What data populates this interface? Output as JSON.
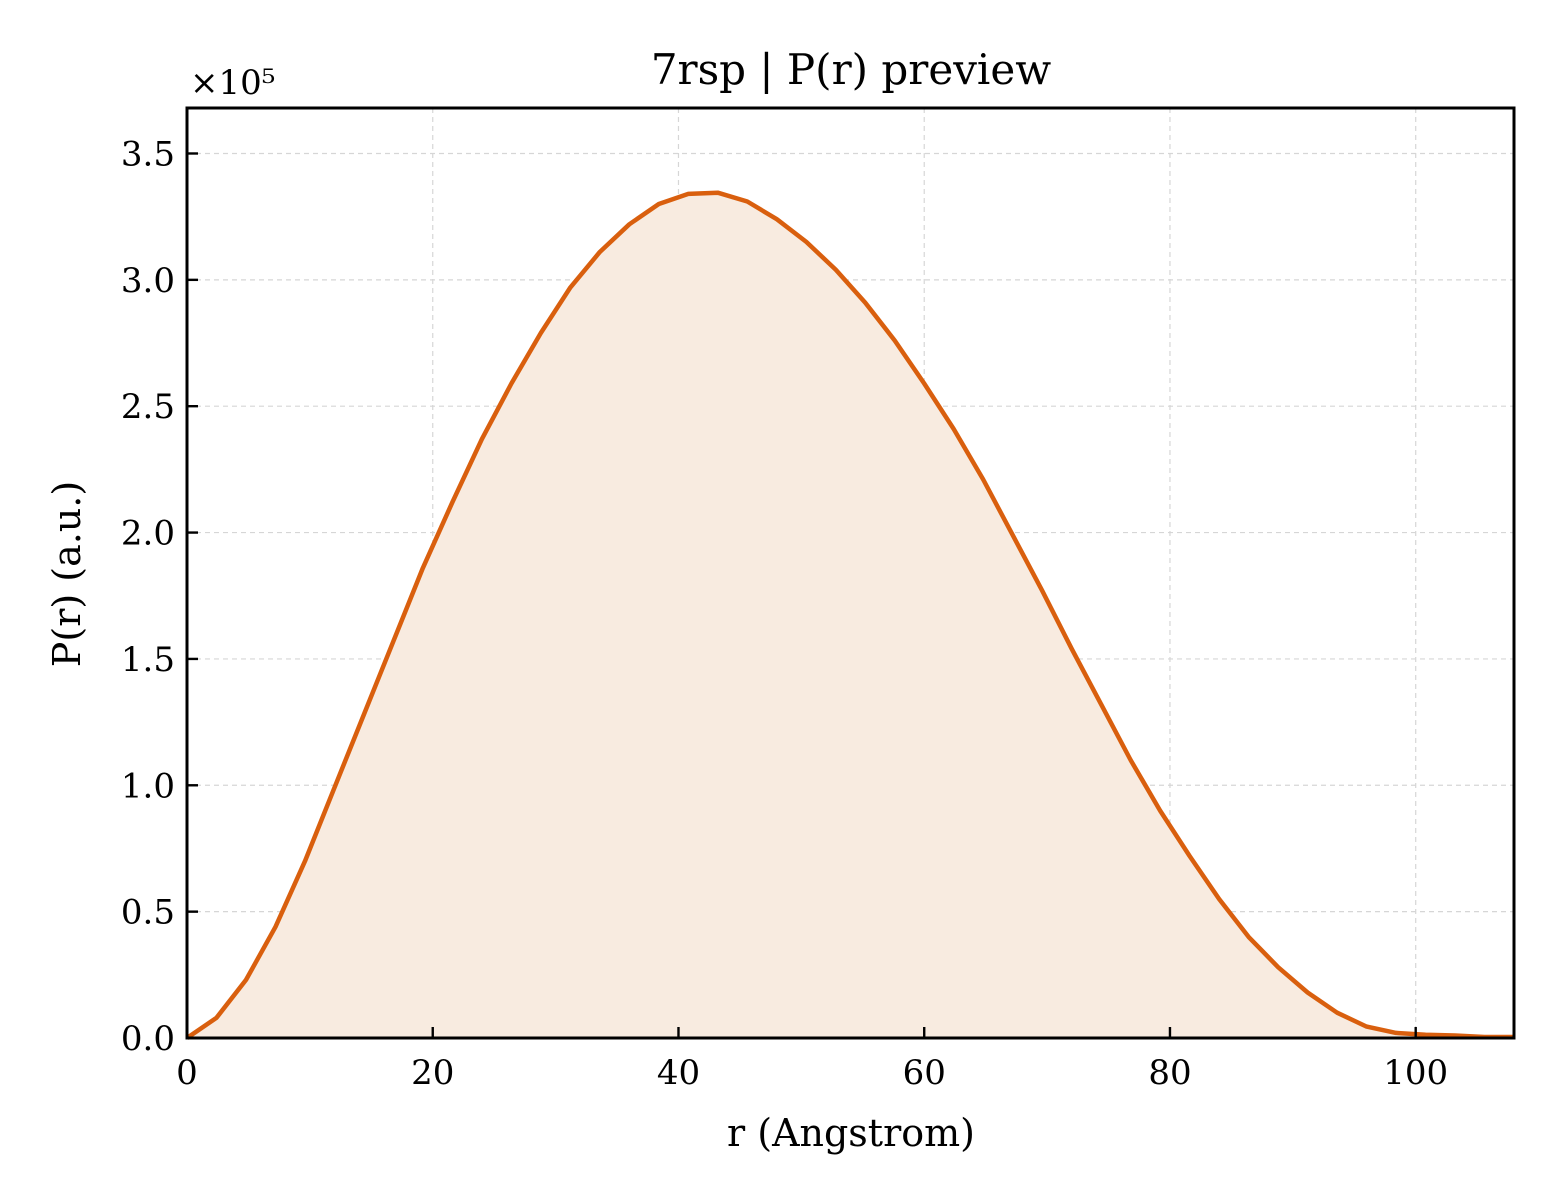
{
  "chart_data": {
    "type": "area",
    "title": "7rsp | P(r) preview",
    "xlabel": "r (Angstrom)",
    "ylabel": "P(r) (a.u.)",
    "y_offset_label": "×10⁵",
    "y_multiplier": 100000,
    "xlim": [
      0,
      108
    ],
    "ylim": [
      0,
      3.68
    ],
    "xticks": [
      0,
      20,
      40,
      60,
      80,
      100
    ],
    "xtick_labels": [
      "0",
      "20",
      "40",
      "60",
      "80",
      "100"
    ],
    "yticks": [
      0.0,
      0.5,
      1.0,
      1.5,
      2.0,
      2.5,
      3.0,
      3.5
    ],
    "ytick_labels": [
      "0.0",
      "0.5",
      "1.0",
      "1.5",
      "2.0",
      "2.5",
      "3.0",
      "3.5"
    ],
    "grid": true,
    "line_color": "#d95f0e",
    "fill_color": "#f8ebe0",
    "series": [
      {
        "x": [
          0,
          2.4,
          4.8,
          7.2,
          9.6,
          12.0,
          14.4,
          16.8,
          19.2,
          21.6,
          24.0,
          26.4,
          28.8,
          31.2,
          33.6,
          36.0,
          38.4,
          40.8,
          43.2,
          45.6,
          48.0,
          50.4,
          52.8,
          55.2,
          57.6,
          60.0,
          62.4,
          64.8,
          67.2,
          69.6,
          72.0,
          74.4,
          76.8,
          79.2,
          81.6,
          84.0,
          86.4,
          88.8,
          91.2,
          93.6,
          96.0,
          98.4,
          100.8,
          103.2,
          105.6,
          108.0
        ],
        "values": [
          0.0,
          0.08,
          0.23,
          0.44,
          0.7,
          0.99,
          1.28,
          1.57,
          1.86,
          2.12,
          2.37,
          2.59,
          2.79,
          2.97,
          3.11,
          3.22,
          3.3,
          3.34,
          3.345,
          3.31,
          3.24,
          3.15,
          3.04,
          2.91,
          2.76,
          2.59,
          2.41,
          2.21,
          1.99,
          1.77,
          1.54,
          1.32,
          1.1,
          0.9,
          0.72,
          0.55,
          0.4,
          0.28,
          0.18,
          0.1,
          0.045,
          0.02,
          0.013,
          0.01,
          0.004,
          0.004
        ]
      }
    ]
  }
}
